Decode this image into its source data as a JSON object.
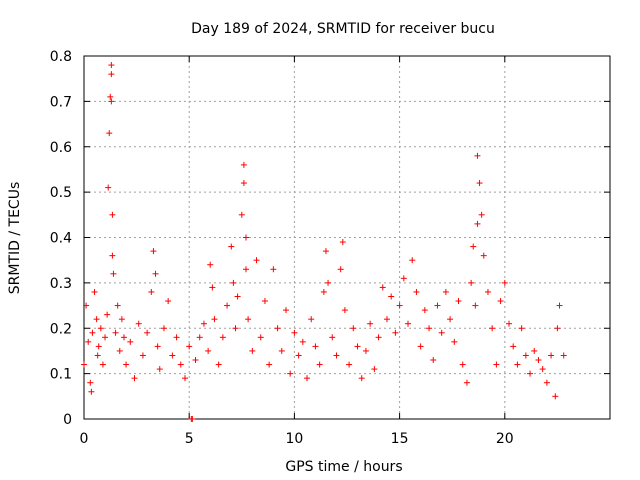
{
  "chart_data": {
    "type": "scatter",
    "title": "Day 189 of 2024, SRMTID for receiver bucu",
    "xlabel": "GPS time / hours",
    "ylabel": "SRMTID / TECUs",
    "xlim": [
      0,
      25
    ],
    "ylim": [
      0,
      0.8
    ],
    "xticks": [
      0,
      5,
      10,
      15,
      20
    ],
    "xtick_labels": [
      "0",
      "5",
      "10",
      "15",
      "20"
    ],
    "yticks": [
      0,
      0.1,
      0.2,
      0.3,
      0.4,
      0.5,
      0.6,
      0.7,
      0.8
    ],
    "ytick_labels": [
      "0",
      "0.1",
      "0.2",
      "0.3",
      "0.4",
      "0.5",
      "0.6",
      "0.7",
      "0.8"
    ],
    "grid": true,
    "marker": "+",
    "color": "#ff0000",
    "series": [
      {
        "name": "SRMTID",
        "x": [
          0.0,
          0.1,
          0.2,
          0.3,
          0.35,
          0.4,
          0.5,
          0.6,
          0.65,
          0.7,
          0.8,
          0.9,
          1.0,
          1.1,
          1.15,
          1.2,
          1.25,
          1.3,
          1.3,
          1.3,
          1.35,
          1.35,
          1.4,
          1.5,
          1.6,
          1.7,
          1.8,
          1.9,
          2.0,
          2.2,
          2.4,
          2.6,
          2.8,
          3.0,
          3.2,
          3.3,
          3.4,
          3.5,
          3.6,
          3.8,
          4.0,
          4.2,
          4.4,
          4.6,
          4.8,
          5.0,
          5.1,
          5.15,
          5.3,
          5.5,
          5.7,
          5.9,
          6.0,
          6.1,
          6.2,
          6.4,
          6.6,
          6.8,
          7.0,
          7.1,
          7.2,
          7.3,
          7.5,
          7.6,
          7.6,
          7.7,
          7.7,
          7.8,
          8.0,
          8.2,
          8.4,
          8.6,
          8.8,
          9.0,
          9.2,
          9.4,
          9.6,
          9.8,
          10.0,
          10.2,
          10.4,
          10.6,
          10.8,
          11.0,
          11.2,
          11.4,
          11.5,
          11.6,
          11.8,
          12.0,
          12.2,
          12.3,
          12.4,
          12.6,
          12.8,
          13.0,
          13.2,
          13.4,
          13.6,
          13.8,
          14.0,
          14.2,
          14.4,
          14.6,
          14.8,
          15.0,
          15.2,
          15.4,
          15.6,
          15.8,
          16.0,
          16.2,
          16.4,
          16.6,
          16.8,
          17.0,
          17.2,
          17.4,
          17.6,
          17.8,
          18.0,
          18.2,
          18.4,
          18.5,
          18.6,
          18.7,
          18.7,
          18.8,
          18.9,
          19.0,
          19.2,
          19.4,
          19.6,
          19.8,
          20.0,
          20.2,
          20.4,
          20.6,
          20.8,
          21.0,
          21.2,
          21.4,
          21.6,
          21.8,
          22.0,
          22.2,
          22.4,
          22.5,
          22.6,
          22.8
        ],
        "y": [
          0.12,
          0.25,
          0.17,
          0.08,
          0.06,
          0.19,
          0.28,
          0.22,
          0.14,
          0.16,
          0.2,
          0.12,
          0.18,
          0.23,
          0.51,
          0.63,
          0.71,
          0.78,
          0.76,
          0.7,
          0.45,
          0.36,
          0.32,
          0.19,
          0.25,
          0.15,
          0.22,
          0.18,
          0.12,
          0.17,
          0.09,
          0.21,
          0.14,
          0.19,
          0.28,
          0.37,
          0.32,
          0.16,
          0.11,
          0.2,
          0.26,
          0.14,
          0.18,
          0.12,
          0.09,
          0.16,
          0.0,
          0.0,
          0.13,
          0.18,
          0.21,
          0.15,
          0.34,
          0.29,
          0.22,
          0.12,
          0.18,
          0.25,
          0.38,
          0.3,
          0.2,
          0.27,
          0.45,
          0.56,
          0.52,
          0.4,
          0.33,
          0.22,
          0.15,
          0.35,
          0.18,
          0.26,
          0.12,
          0.33,
          0.2,
          0.15,
          0.24,
          0.1,
          0.19,
          0.14,
          0.17,
          0.09,
          0.22,
          0.16,
          0.12,
          0.28,
          0.37,
          0.3,
          0.18,
          0.14,
          0.33,
          0.39,
          0.24,
          0.12,
          0.2,
          0.16,
          0.09,
          0.15,
          0.21,
          0.11,
          0.18,
          0.29,
          0.22,
          0.27,
          0.19,
          0.25,
          0.31,
          0.21,
          0.35,
          0.28,
          0.16,
          0.24,
          0.2,
          0.13,
          0.25,
          0.19,
          0.28,
          0.22,
          0.17,
          0.26,
          0.12,
          0.08,
          0.3,
          0.38,
          0.25,
          0.43,
          0.58,
          0.52,
          0.45,
          0.36,
          0.28,
          0.2,
          0.12,
          0.26,
          0.3,
          0.21,
          0.16,
          0.12,
          0.2,
          0.14,
          0.1,
          0.15,
          0.13,
          0.11,
          0.08,
          0.14,
          0.05,
          0.2,
          0.25,
          0.14
        ]
      }
    ]
  }
}
